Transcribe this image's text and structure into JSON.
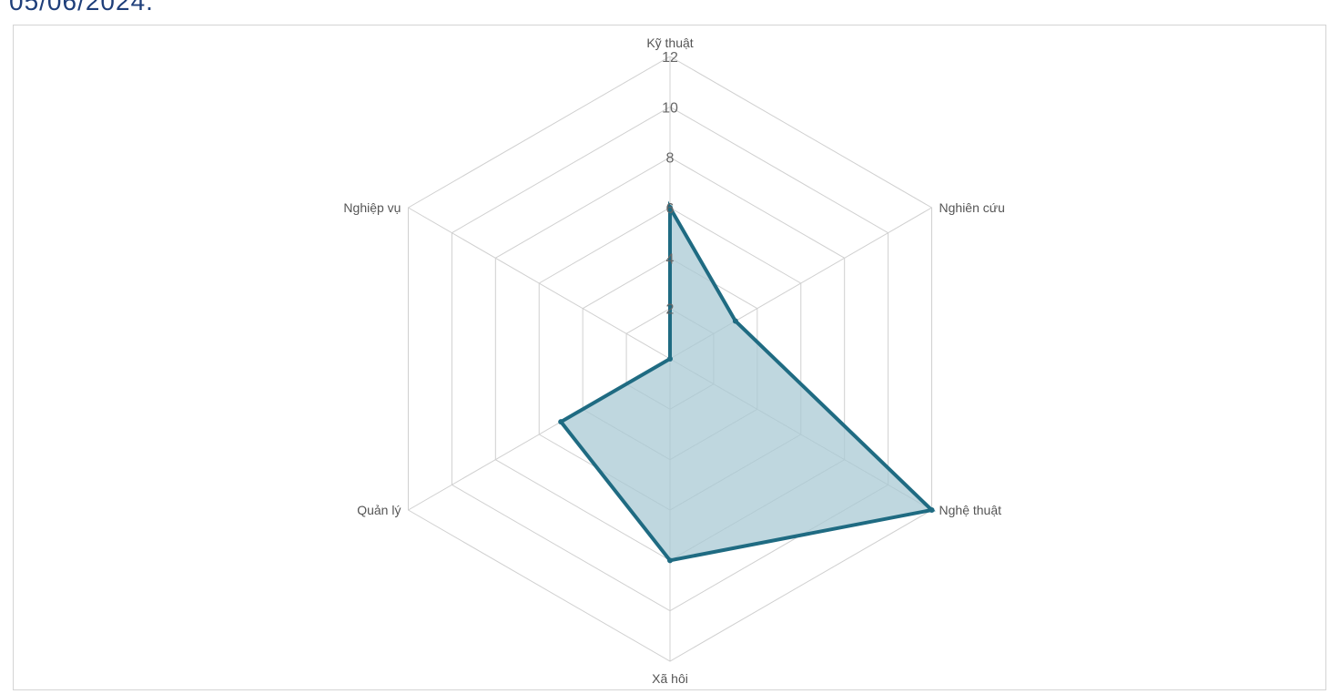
{
  "header": {
    "date_text": "05/06/2024."
  },
  "chart_data": {
    "type": "radar",
    "axes": [
      "Kỹ thuật",
      "Nghiên cứu",
      "Nghệ thuật",
      "Xã hôi",
      "Quản lý",
      "Nghiệp vụ"
    ],
    "series": [
      {
        "values": [
          6,
          3,
          12,
          8,
          5,
          0
        ]
      }
    ],
    "ticks": [
      "2",
      "4",
      "6",
      "8",
      "10",
      "12"
    ],
    "rlim": [
      0,
      12
    ],
    "grid": true,
    "colors": {
      "line": "#1f6b82",
      "fill": "#a9c9d4",
      "grid": "#d0d0d0"
    }
  }
}
